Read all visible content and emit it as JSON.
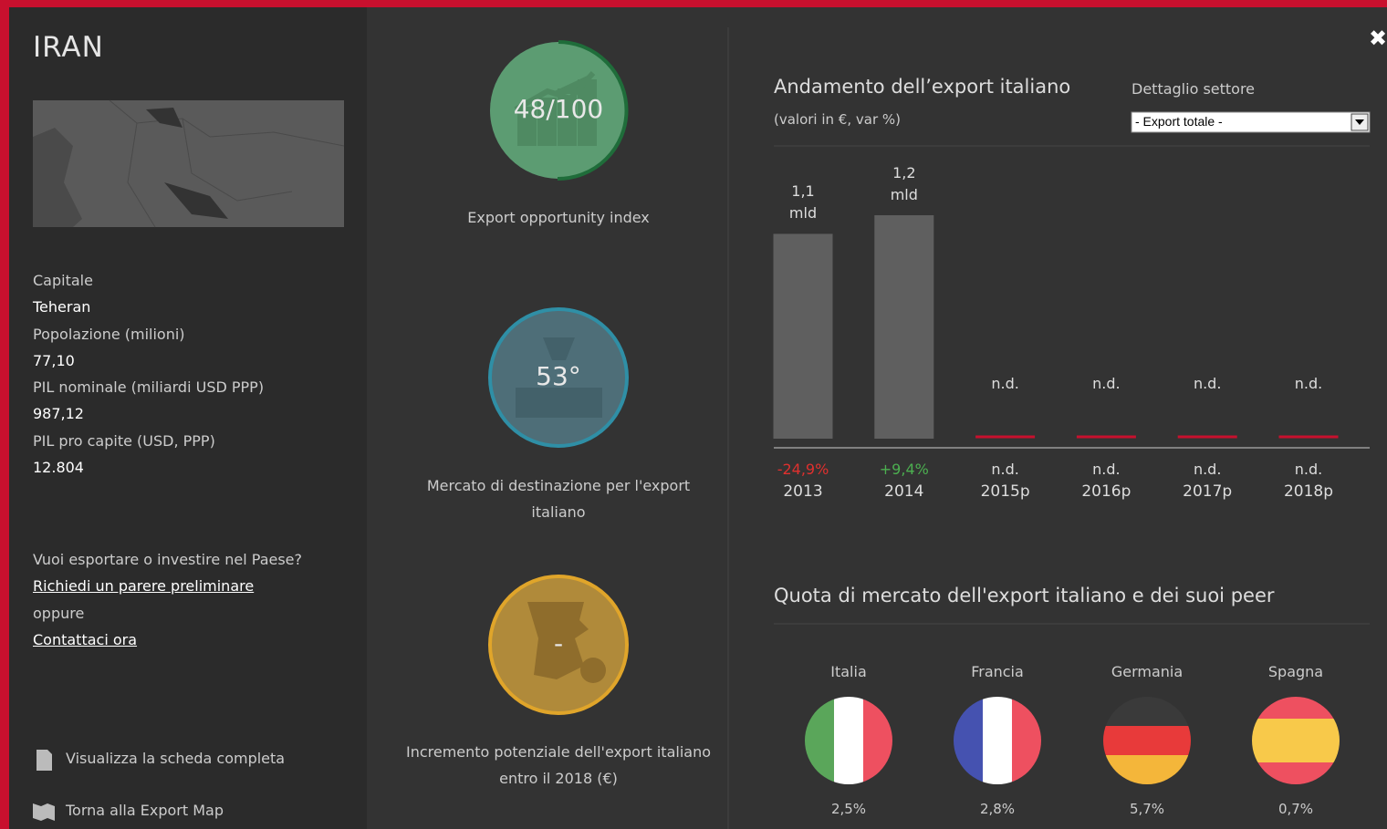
{
  "close": "✖",
  "sidebar": {
    "title": "IRAN",
    "facts": [
      {
        "label": "Capitale",
        "value": "Teheran"
      },
      {
        "label": "Popolazione (milioni)",
        "value": "77,10"
      },
      {
        "label": "PIL nominale (miliardi USD PPP)",
        "value": "987,12"
      },
      {
        "label": "PIL pro capite (USD, PPP)",
        "value": "12.804"
      }
    ],
    "cta": {
      "question": "Vuoi esportare o investire nel Paese?",
      "link1": "Richiedi un parere preliminare",
      "or": "oppure",
      "link2": "Contattaci ora"
    },
    "footer": [
      "Visualizza la scheda completa",
      "Torna alla Export Map"
    ]
  },
  "indices": [
    {
      "value": "48/100",
      "caption": "Export opportunity index"
    },
    {
      "value": "53°",
      "caption": "Mercato di destinazione per l'export italiano"
    },
    {
      "value": "-",
      "caption": "Incremento potenziale dell'export italiano entro il 2018 (€)"
    }
  ],
  "chart_data": {
    "type": "bar",
    "title": "Andamento dell’export italiano",
    "subtitle": "(valori in €, var %)",
    "filter_label": "Dettaglio settore",
    "filter_value": "- Export totale -",
    "categories": [
      "2013",
      "2014",
      "2015p",
      "2016p",
      "2017p",
      "2018p"
    ],
    "values": [
      1.1,
      1.2,
      null,
      null,
      null,
      null
    ],
    "value_labels": [
      "1,1 mld",
      "1,2 mld",
      "n.d.",
      "n.d.",
      "n.d.",
      "n.d."
    ],
    "changes": [
      -24.9,
      9.4,
      null,
      null,
      null,
      null
    ],
    "change_labels": [
      "-24,9%",
      "+9,4%",
      "n.d.",
      "n.d.",
      "n.d.",
      "n.d."
    ],
    "color": "#5f5f5f",
    "missing_color": "#c8102e"
  },
  "peers": {
    "title": "Quota di mercato dell'export italiano e dei suoi peer",
    "items": [
      {
        "name": "Italia",
        "share": "2,5%"
      },
      {
        "name": "Francia",
        "share": "2,8%"
      },
      {
        "name": "Germania",
        "share": "5,7%"
      },
      {
        "name": "Spagna",
        "share": "0,7%"
      }
    ]
  }
}
